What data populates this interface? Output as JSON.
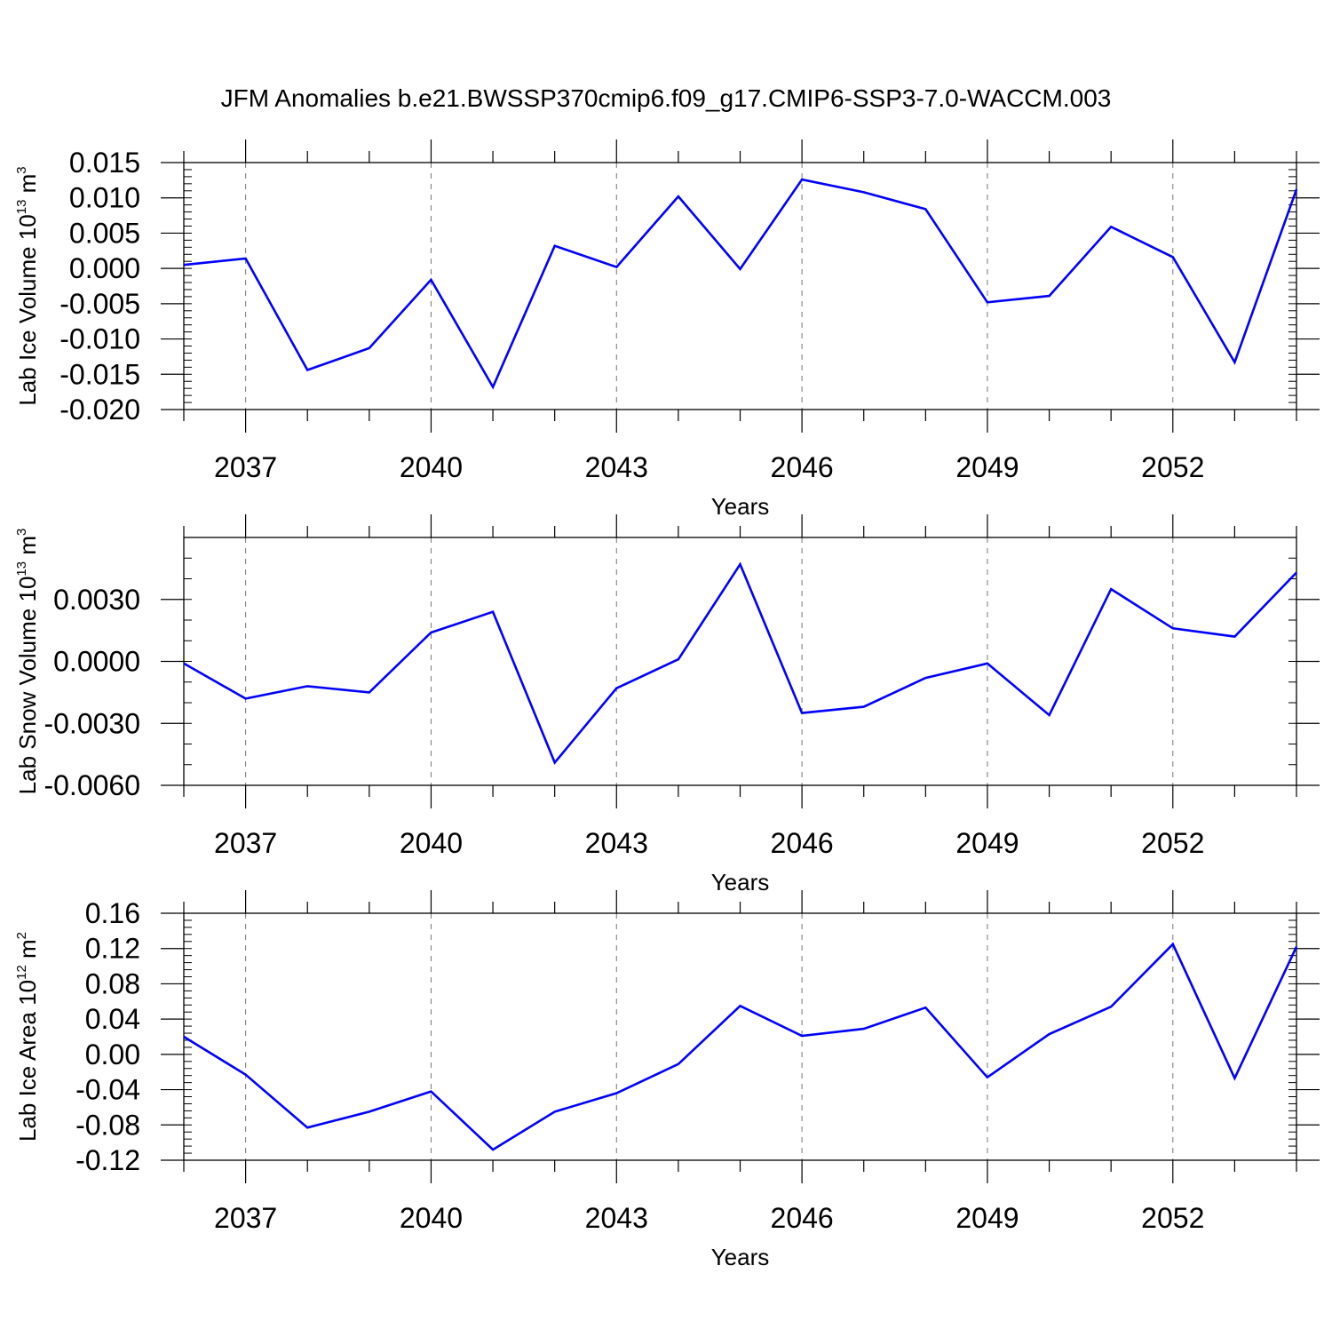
{
  "title": "JFM Anomalies b.e21.BWSSP370cmip6.f09_g17.CMIP6-SSP3-7.0-WACCM.003",
  "colors": {
    "line": "#0000ff",
    "axes": "#000000",
    "grid": "#777777"
  },
  "chart_data": [
    {
      "type": "line",
      "ylabel": "Lab Ice Volume 10",
      "ylabel_exp": "13",
      "ylabel_unit": "m",
      "ylabel_unit_exp": "3",
      "xlabel": "Years",
      "xlim": [
        2036,
        2054
      ],
      "ylim": [
        -0.02,
        0.015
      ],
      "x_ticks": [
        2037,
        2040,
        2043,
        2046,
        2049,
        2052
      ],
      "y_ticks": [
        "0.015",
        "0.010",
        "0.005",
        "0.000",
        "-0.005",
        "-0.010",
        "-0.015",
        "-0.020"
      ],
      "y_tick_values": [
        0.015,
        0.01,
        0.005,
        0.0,
        -0.005,
        -0.01,
        -0.015,
        -0.02
      ],
      "y_minor_step": 0.001,
      "grid": "x-dashed",
      "series": [
        {
          "x": [
            2036,
            2037,
            2038,
            2039,
            2040,
            2041,
            2042,
            2043,
            2044,
            2045,
            2046,
            2047,
            2048,
            2049,
            2050,
            2051,
            2052,
            2053,
            2054
          ],
          "values": [
            0.0005,
            0.0014,
            -0.0144,
            -0.0113,
            -0.0016,
            -0.0168,
            0.0032,
            0.0002,
            0.0102,
            -0.0001,
            0.0126,
            0.0108,
            0.0084,
            -0.0048,
            -0.0039,
            0.0059,
            0.0016,
            -0.0133,
            0.0112
          ]
        }
      ]
    },
    {
      "type": "line",
      "ylabel": "Lab Snow Volume 10",
      "ylabel_exp": "13",
      "ylabel_unit": "m",
      "ylabel_unit_exp": "3",
      "xlabel": "Years",
      "xlim": [
        2036,
        2054
      ],
      "ylim": [
        -0.006,
        0.006
      ],
      "x_ticks": [
        2037,
        2040,
        2043,
        2046,
        2049,
        2052
      ],
      "y_ticks": [
        "0.0030",
        "0.0000",
        "-0.0030",
        "-0.0060"
      ],
      "y_tick_values": [
        0.003,
        0.0,
        -0.003,
        -0.006
      ],
      "y_minor_step": 0.001,
      "grid": "x-dashed",
      "series": [
        {
          "x": [
            2036,
            2037,
            2038,
            2039,
            2040,
            2041,
            2042,
            2043,
            2044,
            2045,
            2046,
            2047,
            2048,
            2049,
            2050,
            2051,
            2052,
            2053,
            2054
          ],
          "values": [
            -0.0001,
            -0.0018,
            -0.0012,
            -0.0015,
            0.0014,
            0.0024,
            -0.0049,
            -0.0013,
            0.0001,
            0.0047,
            -0.0025,
            -0.0022,
            -0.0008,
            -0.0001,
            -0.0026,
            0.0035,
            0.0016,
            0.0012,
            0.0043
          ]
        }
      ]
    },
    {
      "type": "line",
      "ylabel": "Lab Ice Area 10",
      "ylabel_exp": "12",
      "ylabel_unit": "m",
      "ylabel_unit_exp": "2",
      "xlabel": "Years",
      "xlim": [
        2036,
        2054
      ],
      "ylim": [
        -0.12,
        0.16
      ],
      "x_ticks": [
        2037,
        2040,
        2043,
        2046,
        2049,
        2052
      ],
      "y_ticks": [
        "0.16",
        "0.12",
        "0.08",
        "0.04",
        "0.00",
        "-0.04",
        "-0.08",
        "-0.12"
      ],
      "y_tick_values": [
        0.16,
        0.12,
        0.08,
        0.04,
        0.0,
        -0.04,
        -0.08,
        -0.12
      ],
      "y_minor_step": 0.008,
      "grid": "x-dashed",
      "series": [
        {
          "x": [
            2036,
            2037,
            2038,
            2039,
            2040,
            2041,
            2042,
            2043,
            2044,
            2045,
            2046,
            2047,
            2048,
            2049,
            2050,
            2051,
            2052,
            2053,
            2054
          ],
          "values": [
            0.02,
            -0.023,
            -0.083,
            -0.065,
            -0.042,
            -0.108,
            -0.065,
            -0.044,
            -0.011,
            0.055,
            0.021,
            0.029,
            0.053,
            -0.026,
            0.023,
            0.054,
            0.125,
            -0.027,
            0.122
          ]
        }
      ]
    }
  ]
}
